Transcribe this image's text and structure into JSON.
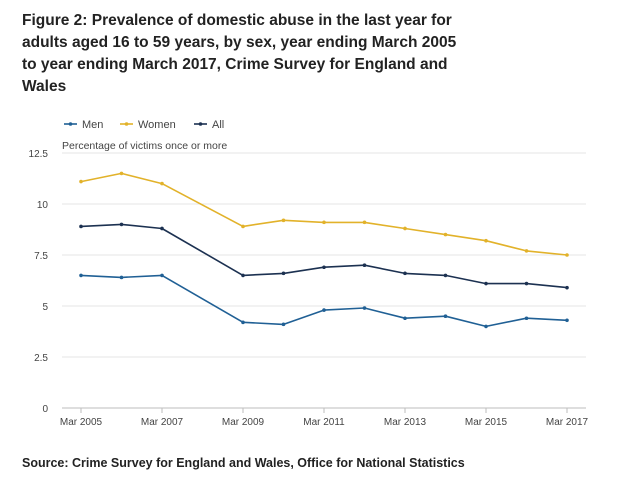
{
  "title": "Figure 2: Prevalence of domestic abuse in the last year for adults aged 16 to 59 years, by sex, year ending March 2005 to year ending March 2017, Crime Survey for England and Wales",
  "source": "Source: Crime Survey for England and Wales, Office for National Statistics",
  "chart_data": {
    "type": "line",
    "title": "Figure 2: Prevalence of domestic abuse in the last year for adults aged 16 to 59 years, by sex, year ending March 2005 to year ending March 2017, Crime Survey for England and Wales",
    "ylabel": "Percentage of victims once or more",
    "xlabel": "",
    "x": [
      "Mar 2005",
      "Mar 2006",
      "Mar 2007",
      "Mar 2008",
      "Mar 2009",
      "Mar 2010",
      "Mar 2011",
      "Mar 2012",
      "Mar 2013",
      "Mar 2014",
      "Mar 2015",
      "Mar 2016",
      "Mar 2017"
    ],
    "x_tick_labels": [
      "Mar 2005",
      "Mar 2007",
      "Mar 2009",
      "Mar 2011",
      "Mar 2013",
      "Mar 2015",
      "Mar 2017"
    ],
    "y_ticks": [
      "0",
      "2.5",
      "5",
      "7.5",
      "10",
      "12.5"
    ],
    "ylim": [
      0,
      12.5
    ],
    "grid": true,
    "legend": "top-left",
    "series": [
      {
        "name": "Men",
        "color": "#206095",
        "values": [
          6.5,
          6.4,
          6.5,
          null,
          4.2,
          4.1,
          4.8,
          4.9,
          4.4,
          4.5,
          4.0,
          4.4,
          4.3
        ]
      },
      {
        "name": "Women",
        "color": "#e2b22a",
        "values": [
          11.1,
          11.5,
          11.0,
          null,
          8.9,
          9.2,
          9.1,
          9.1,
          8.8,
          8.5,
          8.2,
          7.7,
          7.5
        ]
      },
      {
        "name": "All",
        "color": "#1c3151",
        "values": [
          8.9,
          9.0,
          8.8,
          null,
          6.5,
          6.6,
          6.9,
          7.0,
          6.6,
          6.5,
          6.1,
          6.1,
          5.9
        ]
      }
    ]
  }
}
